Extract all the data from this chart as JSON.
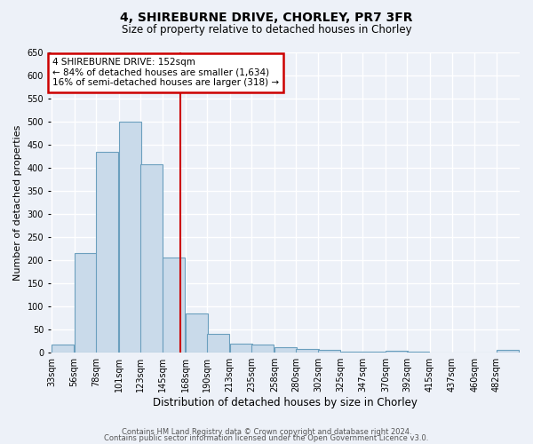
{
  "title": "4, SHIREBURNE DRIVE, CHORLEY, PR7 3FR",
  "subtitle": "Size of property relative to detached houses in Chorley",
  "xlabel": "Distribution of detached houses by size in Chorley",
  "ylabel": "Number of detached properties",
  "footer1": "Contains HM Land Registry data © Crown copyright and database right 2024.",
  "footer2": "Contains public sector information licensed under the Open Government Licence v3.0.",
  "categories": [
    "33sqm",
    "56sqm",
    "78sqm",
    "101sqm",
    "123sqm",
    "145sqm",
    "168sqm",
    "190sqm",
    "213sqm",
    "235sqm",
    "258sqm",
    "280sqm",
    "302sqm",
    "325sqm",
    "347sqm",
    "370sqm",
    "392sqm",
    "415sqm",
    "437sqm",
    "460sqm",
    "482sqm"
  ],
  "values": [
    18,
    215,
    435,
    500,
    408,
    207,
    85,
    40,
    20,
    17,
    12,
    8,
    6,
    3,
    2,
    5,
    2,
    1,
    1,
    1,
    6
  ],
  "bar_color": "#c9daea",
  "bar_edge_color": "#6b9fbe",
  "bg_color": "#edf1f8",
  "grid_color": "#ffffff",
  "red_line_x": 152,
  "bin_centers": [
    33,
    56,
    78,
    101,
    123,
    145,
    168,
    190,
    213,
    235,
    258,
    280,
    302,
    325,
    347,
    370,
    392,
    415,
    437,
    460,
    482
  ],
  "bin_width": 22.5,
  "annotation_title": "4 SHIREBURNE DRIVE: 152sqm",
  "annotation_line1": "← 84% of detached houses are smaller (1,634)",
  "annotation_line2": "16% of semi-detached houses are larger (318) →",
  "annotation_box_color": "#ffffff",
  "annotation_border_color": "#cc0000",
  "vline_color": "#cc0000",
  "ylim": [
    0,
    650
  ],
  "yticks": [
    0,
    50,
    100,
    150,
    200,
    250,
    300,
    350,
    400,
    450,
    500,
    550,
    600,
    650
  ]
}
